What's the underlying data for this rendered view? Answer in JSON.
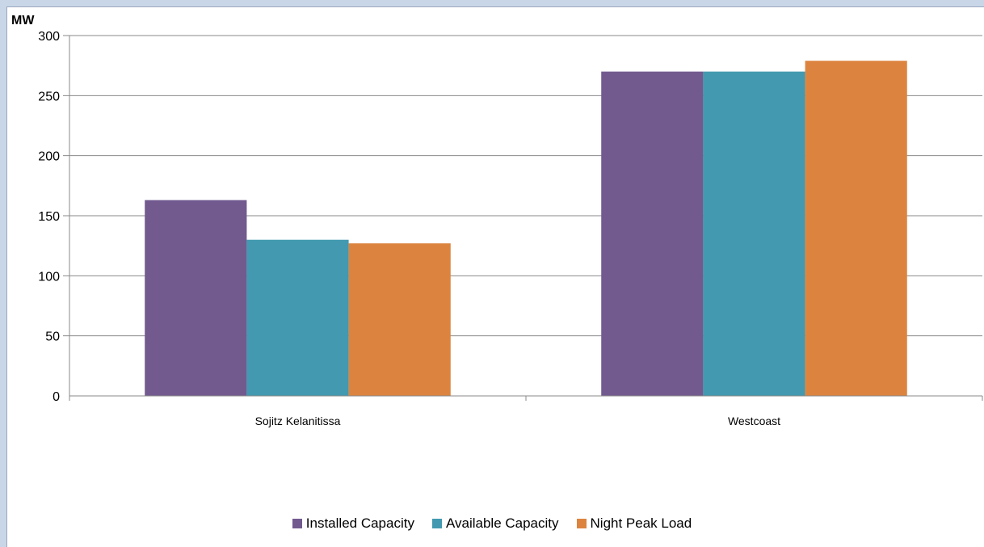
{
  "chart_data": {
    "type": "bar",
    "unit_label": "MW",
    "categories": [
      "Sojitz Kelanitissa",
      "Westcoast"
    ],
    "series": [
      {
        "name": "Installed Capacity",
        "color": "#725a8f",
        "values": [
          163,
          270
        ]
      },
      {
        "name": "Available Capacity",
        "color": "#4299b0",
        "values": [
          130,
          270
        ]
      },
      {
        "name": "Night Peak Load",
        "color": "#dc843f",
        "values": [
          127,
          279
        ]
      }
    ],
    "ylim": [
      0,
      300
    ],
    "yticks": [
      "0",
      "50",
      "100",
      "150",
      "200",
      "250",
      "300"
    ],
    "grid": true,
    "legend_position": "bottom"
  }
}
